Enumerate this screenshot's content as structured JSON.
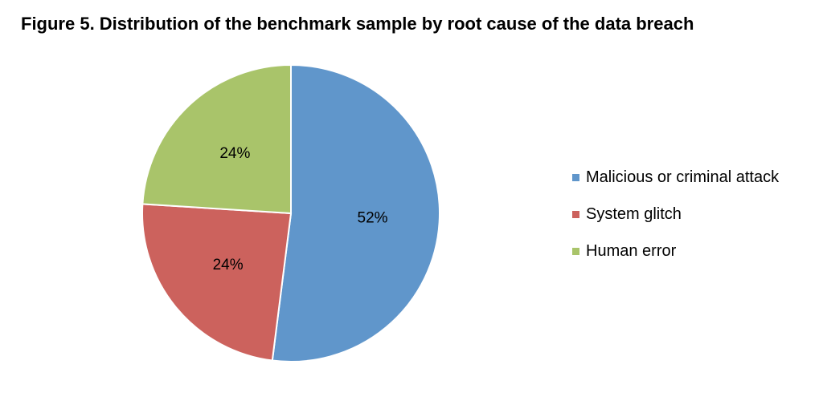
{
  "chart_data": {
    "type": "pie",
    "title": "Figure 5. Distribution of the benchmark sample by root cause of the data breach",
    "categories": [
      "Malicious or criminal attack",
      "System glitch",
      "Human error"
    ],
    "values": [
      52,
      24,
      24
    ],
    "labels": [
      "52%",
      "24%",
      "24%"
    ],
    "colors": [
      "#6096CB",
      "#CC625D",
      "#A9C46A"
    ],
    "legend_position": "right"
  }
}
